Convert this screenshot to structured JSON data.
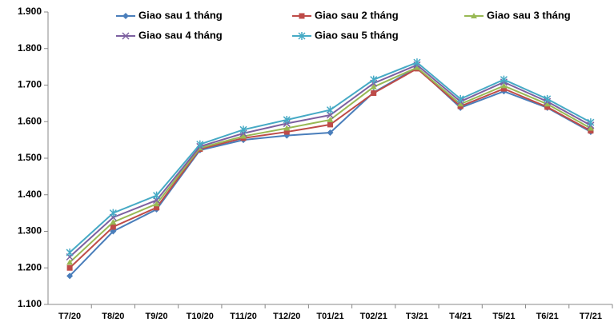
{
  "chart_data": {
    "type": "line",
    "categories": [
      "T7/20",
      "T8/20",
      "T9/20",
      "T10/20",
      "T11/20",
      "T12/20",
      "T01/21",
      "T02/21",
      "T3/21",
      "T4/21",
      "T5/21",
      "T6/21",
      "T7/21"
    ],
    "series": [
      {
        "name": "Giao sau 1 tháng",
        "color": "#4a7ebb",
        "marker": "diamond",
        "values": [
          1178,
          1300,
          1360,
          1522,
          1550,
          1562,
          1570,
          1680,
          1748,
          1638,
          1683,
          1638,
          1572
        ]
      },
      {
        "name": "Giao sau 2 tháng",
        "color": "#be4b48",
        "marker": "square",
        "values": [
          1200,
          1312,
          1365,
          1525,
          1555,
          1572,
          1592,
          1678,
          1745,
          1642,
          1690,
          1640,
          1575
        ]
      },
      {
        "name": "Giao sau 3 tháng",
        "color": "#98b954",
        "marker": "triangle",
        "values": [
          1215,
          1325,
          1375,
          1528,
          1560,
          1582,
          1605,
          1695,
          1748,
          1648,
          1698,
          1648,
          1582
        ]
      },
      {
        "name": "Giao sau 4 tháng",
        "color": "#7d60a0",
        "marker": "x",
        "values": [
          1230,
          1338,
          1385,
          1532,
          1568,
          1595,
          1618,
          1705,
          1755,
          1655,
          1708,
          1655,
          1590
        ]
      },
      {
        "name": "Giao sau 5 tháng",
        "color": "#46aac5",
        "marker": "star",
        "values": [
          1242,
          1350,
          1398,
          1538,
          1578,
          1605,
          1632,
          1715,
          1762,
          1662,
          1715,
          1662,
          1598
        ]
      }
    ],
    "ylim": [
      1100,
      1900
    ],
    "yticks": [
      {
        "value": 1100,
        "label": "1.100"
      },
      {
        "value": 1200,
        "label": "1.200"
      },
      {
        "value": 1300,
        "label": "1.300"
      },
      {
        "value": 1400,
        "label": "1.400"
      },
      {
        "value": 1500,
        "label": "1.500"
      },
      {
        "value": 1600,
        "label": "1.600"
      },
      {
        "value": 1700,
        "label": "1.700"
      },
      {
        "value": 1800,
        "label": "1.800"
      },
      {
        "value": 1900,
        "label": "1.900"
      }
    ],
    "grid": false
  }
}
